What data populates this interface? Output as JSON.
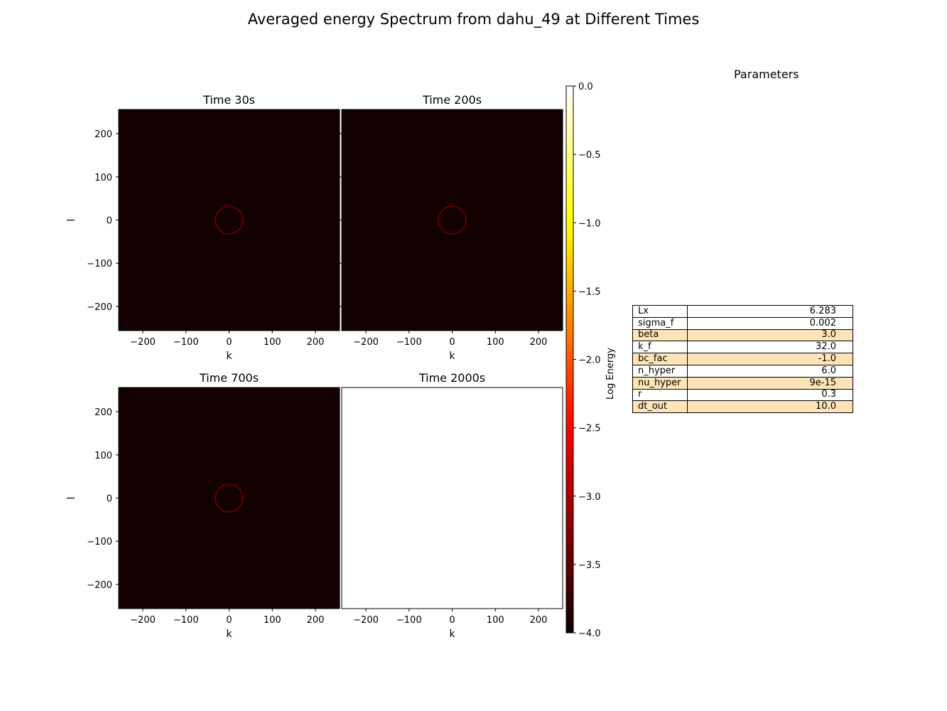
{
  "figure": {
    "title": "Averaged energy Spectrum from dahu_49 at Different Times"
  },
  "chart_data": [
    {
      "type": "heatmap",
      "title": "Time 30s",
      "xlabel": "k",
      "ylabel": "l",
      "xlim": [
        -256,
        256
      ],
      "ylim": [
        -256,
        256
      ],
      "xticks": [
        -200,
        -100,
        0,
        100,
        200
      ],
      "yticks": [
        -200,
        -100,
        0,
        100,
        200
      ],
      "background_log_energy": -3.95,
      "ring": {
        "radius": 32,
        "log_energy": -2.7
      },
      "has_data": true
    },
    {
      "type": "heatmap",
      "title": "Time 200s",
      "xlabel": "k",
      "ylabel": "",
      "xlim": [
        -256,
        256
      ],
      "ylim": [
        -256,
        256
      ],
      "xticks": [
        -200,
        -100,
        0,
        100,
        200
      ],
      "yticks": [
        -200,
        -100,
        0,
        100,
        200
      ],
      "background_log_energy": -3.95,
      "ring": {
        "radius": 32,
        "log_energy": -2.7
      },
      "has_data": true
    },
    {
      "type": "heatmap",
      "title": "Time 700s",
      "xlabel": "k",
      "ylabel": "l",
      "xlim": [
        -256,
        256
      ],
      "ylim": [
        -256,
        256
      ],
      "xticks": [
        -200,
        -100,
        0,
        100,
        200
      ],
      "yticks": [
        -200,
        -100,
        0,
        100,
        200
      ],
      "background_log_energy": -3.95,
      "ring": {
        "radius": 32,
        "log_energy": -2.7
      },
      "has_data": true
    },
    {
      "type": "heatmap",
      "title": "Time 2000s",
      "xlabel": "k",
      "ylabel": "",
      "xlim": [
        -256,
        256
      ],
      "ylim": [
        -256,
        256
      ],
      "xticks": [
        -200,
        -100,
        0,
        100,
        200
      ],
      "yticks": [],
      "has_data": false
    }
  ],
  "colorbar": {
    "label": "Log Energy",
    "colormap": "hot",
    "range": [
      -4.0,
      0.0
    ],
    "ticks": [
      "0.0",
      "−0.5",
      "−1.0",
      "−1.5",
      "−2.0",
      "−2.5",
      "−3.0",
      "−3.5",
      "−4.0"
    ],
    "tick_values": [
      0.0,
      -0.5,
      -1.0,
      -1.5,
      -2.0,
      -2.5,
      -3.0,
      -3.5,
      -4.0
    ]
  },
  "parameters": {
    "title": "Parameters",
    "rows": [
      {
        "key": "Lx",
        "value": "6.283"
      },
      {
        "key": "sigma_f",
        "value": "0.002"
      },
      {
        "key": "beta",
        "value": "3.0"
      },
      {
        "key": "k_f",
        "value": "32.0"
      },
      {
        "key": "bc_fac",
        "value": "-1.0"
      },
      {
        "key": "n_hyper",
        "value": "6.0"
      },
      {
        "key": "nu_hyper",
        "value": "9e-15"
      },
      {
        "key": "r",
        "value": "0.3"
      },
      {
        "key": "dt_out",
        "value": "10.0"
      }
    ]
  }
}
